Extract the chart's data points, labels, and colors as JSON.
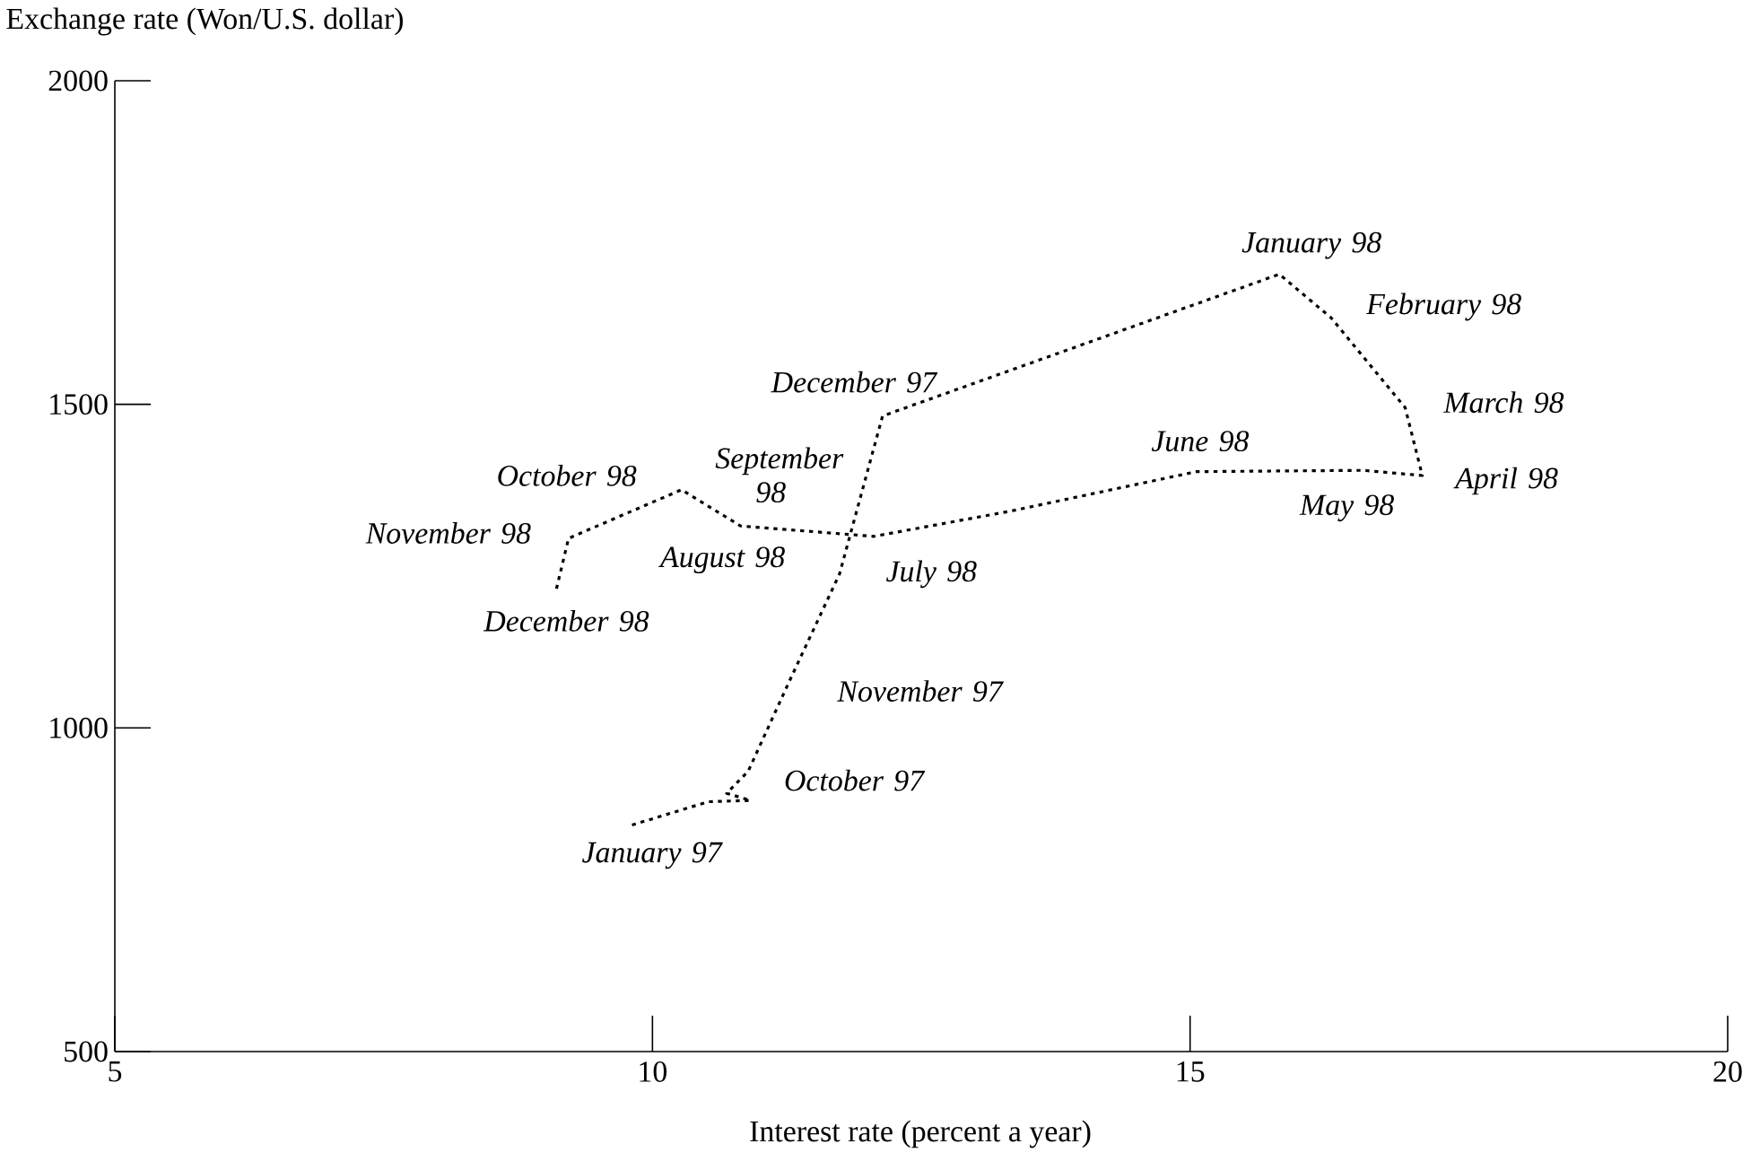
{
  "chart_data": {
    "type": "line",
    "xlabel": "Interest rate (percent a year)",
    "ylabel": "Exchange rate (Won/U.S. dollar)",
    "xlim": [
      5,
      20
    ],
    "xticks": [
      5,
      10,
      15,
      20
    ],
    "ylim": [
      500,
      2000
    ],
    "yticks": [
      500,
      1000,
      1500,
      2000
    ],
    "marker": "none",
    "line_style": "dotted",
    "series": [
      {
        "color": "#000000",
        "x": [
          9.81,
          10.52,
          10.91,
          10.69,
          10.89,
          11.27,
          11.74,
          12.14,
          15.83,
          16.31,
          17.0,
          17.16,
          16.61,
          15.06,
          13.33,
          12.06,
          10.82,
          10.27,
          9.22,
          9.1
        ],
        "values": [
          850,
          886,
          888,
          899,
          933,
          1071,
          1238,
          1482,
          1701,
          1634,
          1495,
          1390,
          1398,
          1396,
          1335,
          1296,
          1312,
          1368,
          1293,
          1210
        ]
      }
    ],
    "annotations": [
      {
        "text": "January 97",
        "x": 9.81,
        "y": 850
      },
      {
        "text": "October 97",
        "x": 10.89,
        "y": 933
      },
      {
        "text": "November 97",
        "x": 11.27,
        "y": 1071
      },
      {
        "text": "December 97",
        "x": 12.14,
        "y": 1482
      },
      {
        "text": "January 98",
        "x": 15.83,
        "y": 1701
      },
      {
        "text": "February 98",
        "x": 16.31,
        "y": 1634
      },
      {
        "text": "March 98",
        "x": 17.0,
        "y": 1495
      },
      {
        "text": "April 98",
        "x": 17.16,
        "y": 1390
      },
      {
        "text": "May 98",
        "x": 16.61,
        "y": 1398
      },
      {
        "text": "June 98",
        "x": 15.06,
        "y": 1396
      },
      {
        "text": "July 98",
        "x": 12.06,
        "y": 1296
      },
      {
        "text": "August 98",
        "x": 10.82,
        "y": 1312
      },
      {
        "text": "September 98",
        "x": 10.6,
        "y": 1330
      },
      {
        "text": "October 98",
        "x": 10.27,
        "y": 1368
      },
      {
        "text": "November 98",
        "x": 9.22,
        "y": 1293
      },
      {
        "text": "December 98",
        "x": 9.1,
        "y": 1210
      }
    ]
  }
}
